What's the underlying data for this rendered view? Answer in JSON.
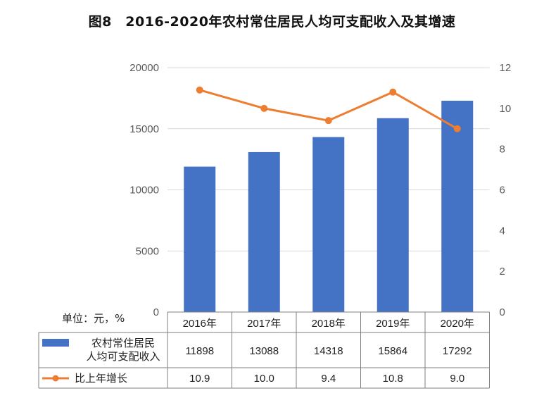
{
  "title": "图8　2016-2020年农村常住居民人均可支配收入及其增速",
  "unit_label": "单位：元，%",
  "chart_data": {
    "type": "bar",
    "categories": [
      "2016年",
      "2017年",
      "2018年",
      "2019年",
      "2020年"
    ],
    "series": [
      {
        "name": "农村常住居民人均可支配收入",
        "type": "bar",
        "axis": "left",
        "values": [
          11898,
          13088,
          14318,
          15864,
          17292
        ],
        "display": [
          "11898",
          "13088",
          "14318",
          "15864",
          "17292"
        ]
      },
      {
        "name": "比上年增长",
        "type": "line",
        "axis": "right",
        "values": [
          10.9,
          10.0,
          9.4,
          10.8,
          9.0
        ],
        "display": [
          "10.9",
          "10.0",
          "9.4",
          "10.8",
          "9.0"
        ]
      }
    ],
    "y_left": {
      "min": 0,
      "max": 20000,
      "ticks": [
        "0",
        "5000",
        "10000",
        "15000",
        "20000"
      ]
    },
    "y_right": {
      "min": 0,
      "max": 12,
      "ticks": [
        "0",
        "2",
        "4",
        "6",
        "8",
        "10",
        "12"
      ]
    },
    "legend": [
      "农村常住居民",
      "人均可支配收入",
      "比上年增长"
    ],
    "grid": true,
    "colors": {
      "bar": "#4472C4",
      "line": "#ED7D31",
      "grid": "#D9D9D9",
      "table_border": "#7F7F7F"
    }
  }
}
